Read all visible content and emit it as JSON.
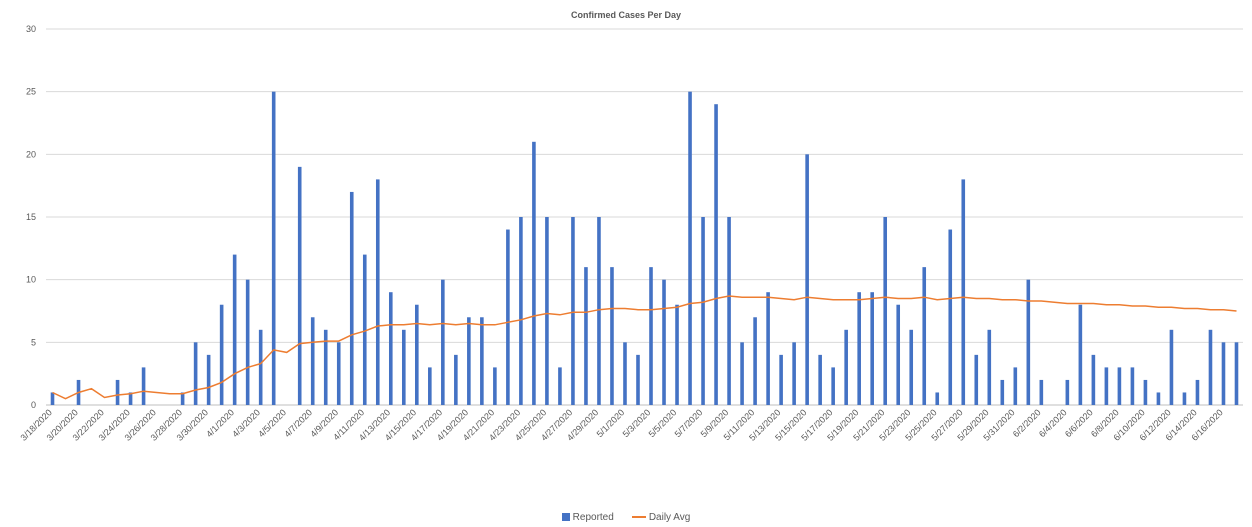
{
  "colors": {
    "reported": "#4472C4",
    "daily_avg": "#ED7D31",
    "grid": "#D9D9D9",
    "text": "#595959"
  },
  "chart_data": {
    "type": "bar",
    "title": "Confirmed Cases Per Day",
    "xlabel": "",
    "ylabel": "",
    "ylim": [
      0,
      30
    ],
    "yticks": [
      0,
      5,
      10,
      15,
      20,
      25,
      30
    ],
    "grid": true,
    "legend_position": "bottom",
    "dates": [
      "3/18/2020",
      "3/19/2020",
      "3/20/2020",
      "3/21/2020",
      "3/22/2020",
      "3/23/2020",
      "3/24/2020",
      "3/25/2020",
      "3/26/2020",
      "3/27/2020",
      "3/28/2020",
      "3/29/2020",
      "3/30/2020",
      "3/31/2020",
      "4/1/2020",
      "4/2/2020",
      "4/3/2020",
      "4/4/2020",
      "4/5/2020",
      "4/6/2020",
      "4/7/2020",
      "4/8/2020",
      "4/9/2020",
      "4/10/2020",
      "4/11/2020",
      "4/12/2020",
      "4/13/2020",
      "4/14/2020",
      "4/15/2020",
      "4/16/2020",
      "4/17/2020",
      "4/18/2020",
      "4/19/2020",
      "4/20/2020",
      "4/21/2020",
      "4/22/2020",
      "4/23/2020",
      "4/24/2020",
      "4/25/2020",
      "4/26/2020",
      "4/27/2020",
      "4/28/2020",
      "4/29/2020",
      "4/30/2020",
      "5/1/2020",
      "5/2/2020",
      "5/3/2020",
      "5/4/2020",
      "5/5/2020",
      "5/6/2020",
      "5/7/2020",
      "5/8/2020",
      "5/9/2020",
      "5/10/2020",
      "5/11/2020",
      "5/12/2020",
      "5/13/2020",
      "5/14/2020",
      "5/15/2020",
      "5/16/2020",
      "5/17/2020",
      "5/18/2020",
      "5/19/2020",
      "5/20/2020",
      "5/21/2020",
      "5/22/2020",
      "5/23/2020",
      "5/24/2020",
      "5/25/2020",
      "5/26/2020",
      "5/27/2020",
      "5/28/2020",
      "5/29/2020",
      "5/30/2020",
      "5/31/2020",
      "6/1/2020",
      "6/2/2020",
      "6/3/2020",
      "6/4/2020",
      "6/5/2020",
      "6/6/2020",
      "6/7/2020",
      "6/8/2020",
      "6/9/2020",
      "6/10/2020",
      "6/11/2020",
      "6/12/2020",
      "6/13/2020",
      "6/14/2020",
      "6/15/2020",
      "6/16/2020",
      "6/17/2020"
    ],
    "tick_labels": [
      "3/18/2020",
      "3/20/2020",
      "3/22/2020",
      "3/24/2020",
      "3/26/2020",
      "3/28/2020",
      "3/30/2020",
      "4/1/2020",
      "4/3/2020",
      "4/5/2020",
      "4/7/2020",
      "4/9/2020",
      "4/11/2020",
      "4/13/2020",
      "4/15/2020",
      "4/17/2020",
      "4/19/2020",
      "4/21/2020",
      "4/23/2020",
      "4/25/2020",
      "4/27/2020",
      "4/29/2020",
      "5/1/2020",
      "5/3/2020",
      "5/5/2020",
      "5/7/2020",
      "5/9/2020",
      "5/11/2020",
      "5/13/2020",
      "5/15/2020",
      "5/17/2020",
      "5/19/2020",
      "5/21/2020",
      "5/23/2020",
      "5/25/2020",
      "5/27/2020",
      "5/29/2020",
      "5/31/2020",
      "6/2/2020",
      "6/4/2020",
      "6/6/2020",
      "6/8/2020",
      "6/10/2020",
      "6/12/2020",
      "6/14/2020",
      "6/16/2020"
    ],
    "series": [
      {
        "name": "Reported",
        "type": "bar",
        "values": [
          1,
          0,
          2,
          0,
          0,
          2,
          1,
          3,
          0,
          0,
          1,
          5,
          4,
          8,
          12,
          10,
          6,
          25,
          0,
          19,
          7,
          6,
          5,
          17,
          12,
          18,
          9,
          6,
          8,
          3,
          10,
          4,
          7,
          7,
          3,
          14,
          15,
          21,
          15,
          3,
          15,
          11,
          15,
          11,
          5,
          4,
          11,
          10,
          8,
          25,
          15,
          24,
          15,
          5,
          7,
          9,
          4,
          5,
          20,
          4,
          3,
          6,
          9,
          9,
          15,
          8,
          6,
          11,
          1,
          14,
          18,
          4,
          6,
          2,
          3,
          10,
          2,
          0,
          2,
          8,
          4,
          3,
          3,
          3,
          2,
          1,
          6,
          1,
          2,
          6,
          5,
          5
        ]
      },
      {
        "name": "Daily Avg",
        "type": "line",
        "values": [
          1,
          0.5,
          1,
          1.3,
          0.6,
          0.8,
          0.9,
          1.1,
          1.0,
          0.9,
          0.9,
          1.2,
          1.4,
          1.8,
          2.5,
          3.0,
          3.3,
          4.4,
          4.2,
          4.9,
          5.0,
          5.1,
          5.1,
          5.6,
          5.9,
          6.3,
          6.4,
          6.4,
          6.5,
          6.4,
          6.5,
          6.4,
          6.5,
          6.4,
          6.4,
          6.6,
          6.8,
          7.1,
          7.3,
          7.2,
          7.4,
          7.4,
          7.6,
          7.7,
          7.7,
          7.6,
          7.6,
          7.7,
          7.8,
          8.1,
          8.2,
          8.5,
          8.7,
          8.6,
          8.6,
          8.6,
          8.5,
          8.4,
          8.6,
          8.5,
          8.4,
          8.4,
          8.4,
          8.5,
          8.6,
          8.5,
          8.5,
          8.6,
          8.4,
          8.5,
          8.6,
          8.5,
          8.5,
          8.4,
          8.4,
          8.3,
          8.3,
          8.2,
          8.1,
          8.1,
          8.1,
          8.0,
          8.0,
          7.9,
          7.9,
          7.8,
          7.8,
          7.7,
          7.7,
          7.6,
          7.6,
          7.5
        ]
      }
    ]
  }
}
